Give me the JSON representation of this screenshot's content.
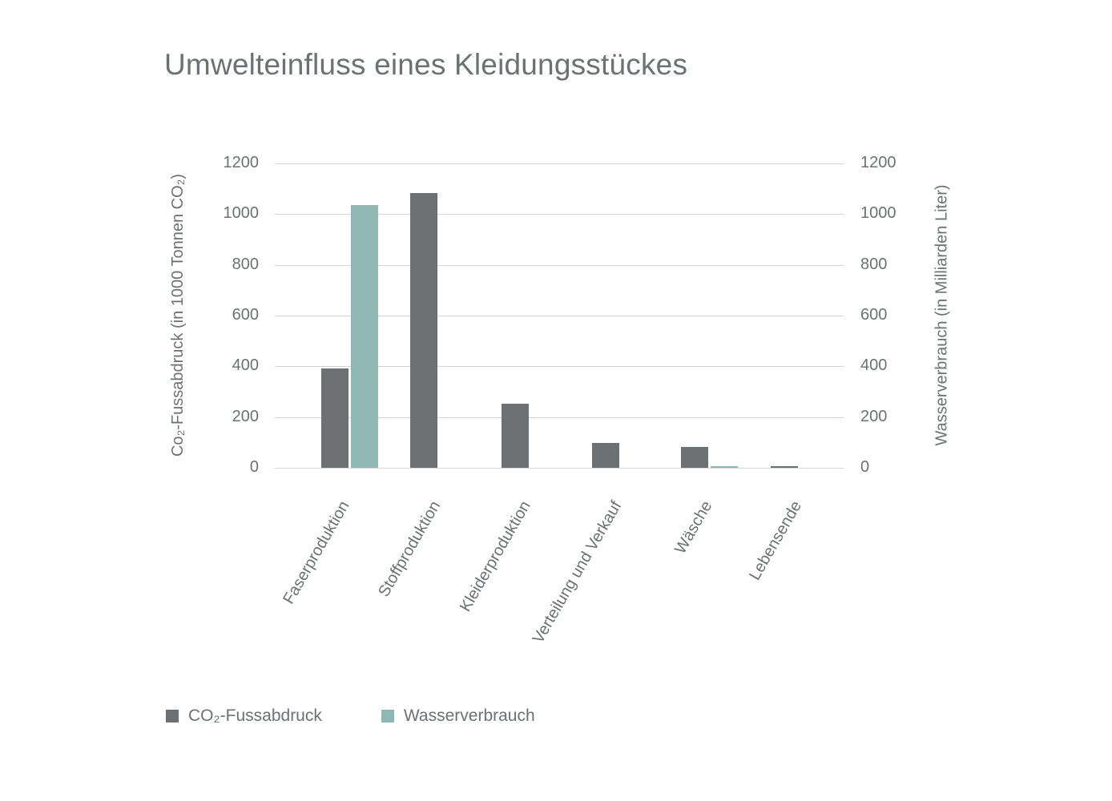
{
  "chart_data": {
    "type": "bar",
    "title": "Umwelteinfluss eines Kleidungsstückes",
    "categories": [
      "Faserproduktion",
      "Stoffproduktion",
      "Kleiderproduktion",
      "Verteilung und Verkauf",
      "Wäsche",
      "Lebensende"
    ],
    "series": [
      {
        "name": "CO₂-Fussabdruck",
        "axis": "left",
        "color": "#6d7174",
        "values": [
          391,
          1084,
          254,
          98,
          82,
          6
        ]
      },
      {
        "name": "Wasserverbrauch",
        "axis": "right",
        "color": "#8fb8b4",
        "values": [
          1035,
          0,
          0,
          0,
          6,
          0
        ]
      }
    ],
    "ylabel": "Co₂-Fussabdruck (in 1000 Tonnen CO₂)",
    "y2label": "Wasserverbrauch (in Milliarden Liter)",
    "ylim": [
      0,
      1200
    ],
    "y2lim": [
      0,
      1200
    ],
    "yticks": [
      0,
      200,
      400,
      600,
      800,
      1000,
      1200
    ],
    "grid": true,
    "legend_position": "bottom-left"
  },
  "title": "Umwelteinfluss eines Kleidungsstückes",
  "axes": {
    "left_title": "Co₂-Fussabdruck (in 1000 Tonnen CO₂)",
    "right_title": "Wasserverbrauch (in Milliarden Liter)",
    "ticks": [
      "0",
      "200",
      "400",
      "600",
      "800",
      "1000",
      "1200"
    ]
  },
  "legend": {
    "items": [
      {
        "label": "CO₂-Fussabdruck",
        "color": "#6d7174"
      },
      {
        "label": "Wasserverbrauch",
        "color": "#8fb8b4"
      }
    ]
  }
}
